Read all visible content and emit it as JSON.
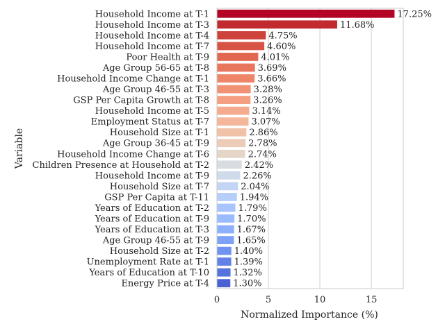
{
  "chart_data": {
    "type": "bar",
    "orientation": "horizontal",
    "xlabel": "Normalized Importance (%)",
    "ylabel": "Variable",
    "xlim": [
      0,
      18.1
    ],
    "xticks": [
      0,
      5,
      10,
      15
    ],
    "grid": "vertical",
    "categories": [
      "Household Income at T-1",
      "Household Income at T-3",
      "Household Income at T-4",
      "Household Income at T-7",
      "Poor Health at T-9",
      "Age Group 56-65 at T-8",
      "Household Income Change at T-1",
      "Age Group 46-55 at T-3",
      "GSP Per Capita Growth at T-8",
      "Household Income at T-5",
      "Employment Status at T-7",
      "Household Size at T-1",
      "Age Group 36-45 at T-9",
      "Household Income Change at T-6",
      "Children Presence at Household at T-2",
      "Household Income at T-9",
      "Household Size at T-7",
      "GSP Per Capita at T-11",
      "Years of Education at T-2",
      "Years of Education at T-9",
      "Years of Education at T-3",
      "Age Group 46-55 at T-9",
      "Household Size at T-2",
      "Unemployment Rate at T-1",
      "Years of Education at T-10",
      "Energy Price at T-4"
    ],
    "values": [
      17.25,
      11.68,
      4.75,
      4.6,
      4.01,
      3.69,
      3.66,
      3.28,
      3.26,
      3.14,
      3.07,
      2.86,
      2.78,
      2.74,
      2.42,
      2.26,
      2.04,
      1.94,
      1.79,
      1.7,
      1.67,
      1.65,
      1.4,
      1.39,
      1.32,
      1.3
    ],
    "value_labels": [
      "17.25%",
      "11.68%",
      "4.75%",
      "4.60%",
      "4.01%",
      "3.69%",
      "3.66%",
      "3.28%",
      "3.26%",
      "3.14%",
      "3.07%",
      "2.86%",
      "2.78%",
      "2.74%",
      "2.42%",
      "2.26%",
      "2.04%",
      "1.94%",
      "1.79%",
      "1.70%",
      "1.67%",
      "1.65%",
      "1.40%",
      "1.39%",
      "1.32%",
      "1.30%"
    ],
    "colors": [
      "#b40426",
      "#c12b30",
      "#cd423b",
      "#d75445",
      "#e16751",
      "#e8765c",
      "#ee8468",
      "#f29274",
      "#f59f80",
      "#f5ab8e",
      "#f4b79b",
      "#f1c2a8",
      "#ecccb6",
      "#e4d5c7",
      "#d9dce1",
      "#cfdaeb",
      "#c3d5f4",
      "#b6cefa",
      "#a8c4fe",
      "#9abbff",
      "#8caffe",
      "#7ea1fa",
      "#7093f3",
      "#6282ea",
      "#5572df",
      "#4961d2"
    ]
  }
}
